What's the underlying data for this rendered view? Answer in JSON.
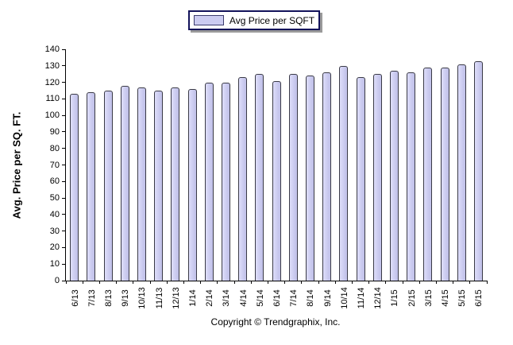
{
  "chart": {
    "legend": {
      "label": "Avg Price per SQFT",
      "swatch_fill": "#ccccf0",
      "swatch_border": "#3c3c6e",
      "box_border": "#12125a"
    },
    "ylabel": "Avg. Price per SQ. FT.",
    "copyright": "Copyright © Trendgraphix, Inc.",
    "colors": {
      "bar_fill": "#ccccf0",
      "bar_border": "#3a3a46",
      "axis": "#000000",
      "background": "#ffffff"
    }
  },
  "chart_data": {
    "type": "bar",
    "title": "Avg Price per SQFT",
    "xlabel": "",
    "ylabel": "Avg. Price per SQ. FT.",
    "ylim": [
      0,
      140
    ],
    "ytick_step": 10,
    "grid": false,
    "legend_position": "top-center",
    "categories": [
      "6/13",
      "7/13",
      "8/13",
      "9/13",
      "10/13",
      "11/13",
      "12/13",
      "1/14",
      "2/14",
      "3/14",
      "4/14",
      "5/14",
      "6/14",
      "7/14",
      "8/14",
      "9/14",
      "10/14",
      "11/14",
      "12/14",
      "1/15",
      "2/15",
      "3/15",
      "4/15",
      "5/15",
      "6/15"
    ],
    "series": [
      {
        "name": "Avg Price per SQFT",
        "values": [
          113,
          114,
          115,
          118,
          117,
          115,
          117,
          116,
          120,
          120,
          123,
          125,
          121,
          125,
          124,
          126,
          130,
          123,
          125,
          127,
          126,
          129,
          129,
          131,
          133
        ]
      }
    ]
  }
}
